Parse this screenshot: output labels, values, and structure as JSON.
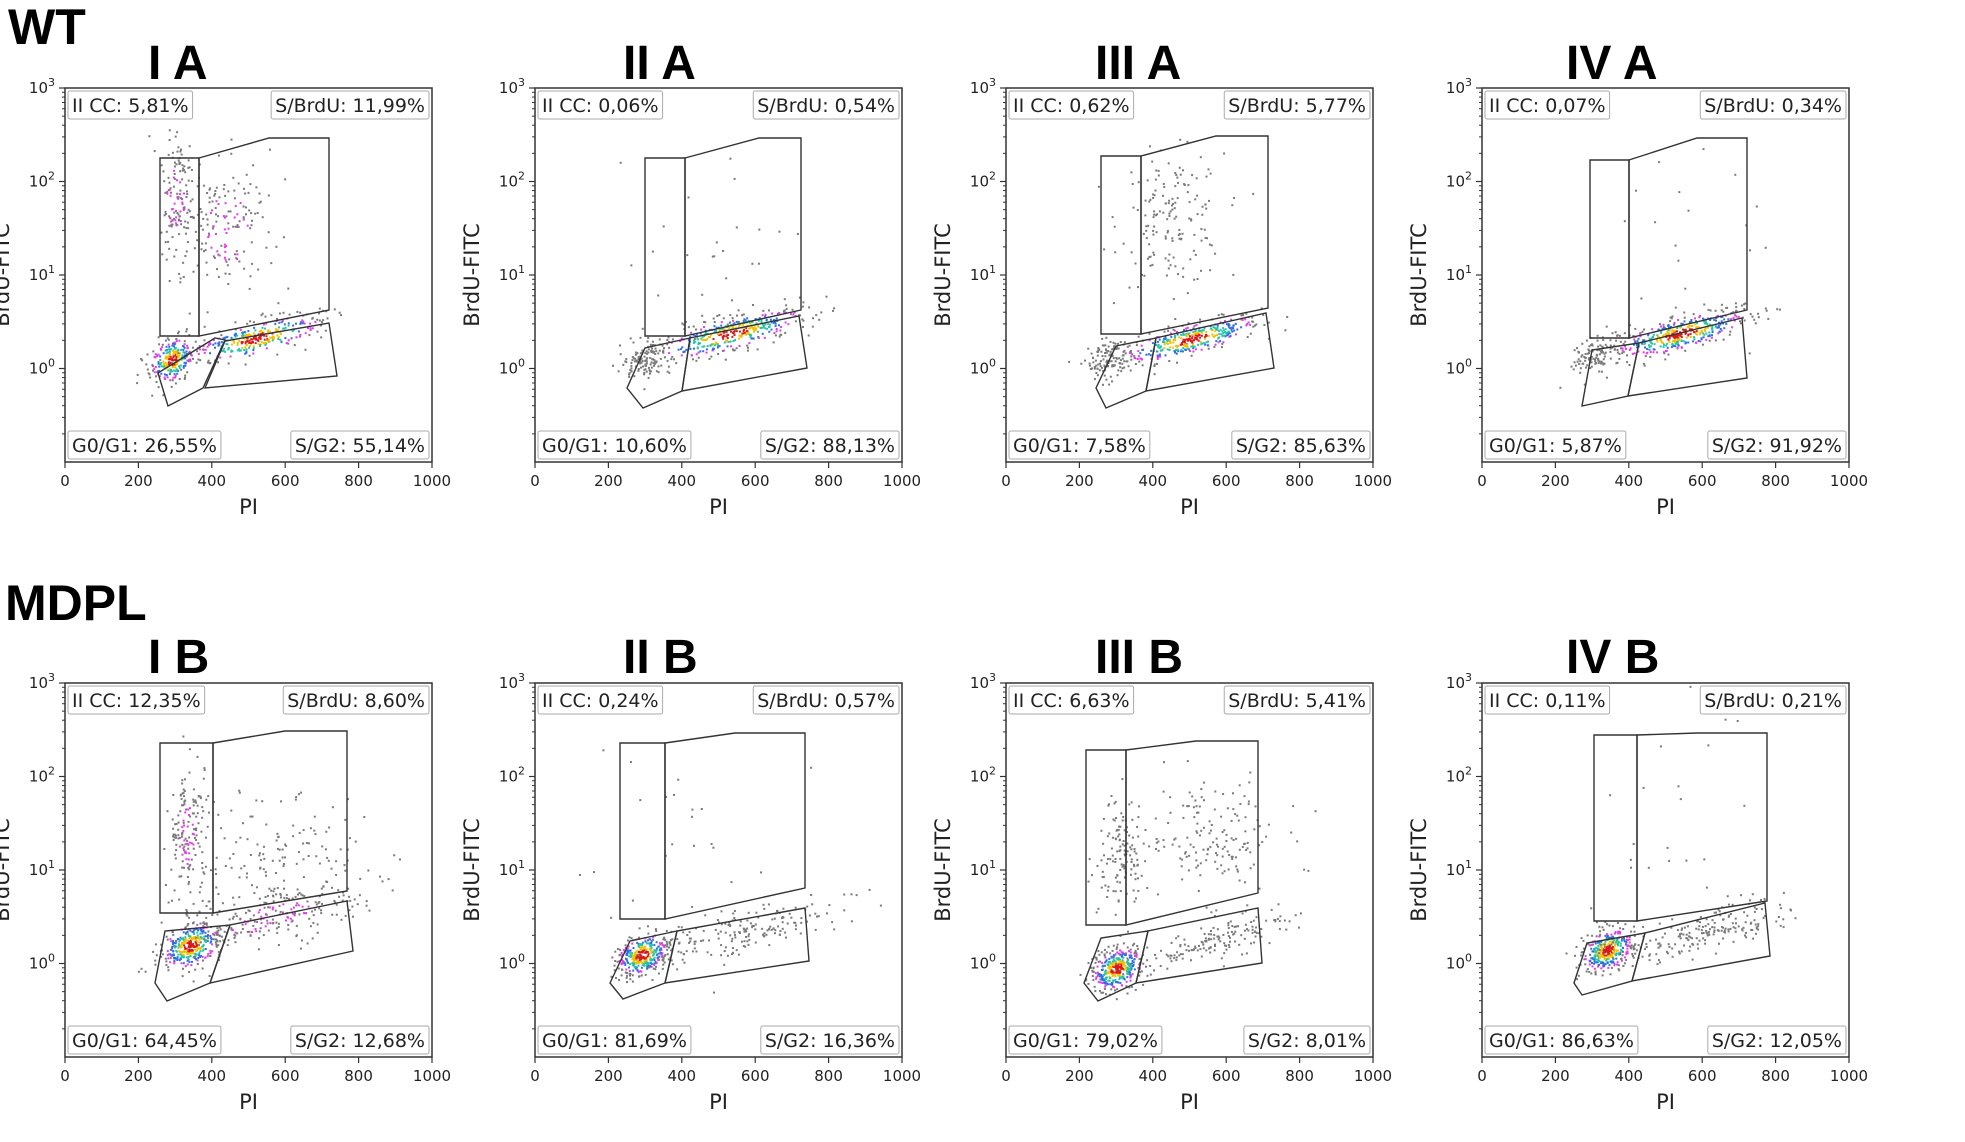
{
  "rows": [
    {
      "label": "WT"
    },
    {
      "label": "MDPL"
    }
  ],
  "chart_data": [
    {
      "type": "scatter",
      "title": "I A",
      "xlabel": "PI",
      "ylabel": "BrdU-FITC",
      "xlim": [
        0,
        1000
      ],
      "ylim": [
        0.1,
        1000
      ],
      "yscale": "log",
      "xticks": [
        "0",
        "200",
        "400",
        "600",
        "800",
        "1000"
      ],
      "gates": {
        "ii_cc": "II CC: 5,81%",
        "s_brdu": "S/BrdU: 11,99%",
        "g0_g1": "G0/G1: 26,55%",
        "s_g2": "S/G2: 55,14%"
      }
    },
    {
      "type": "scatter",
      "title": "II A",
      "xlabel": "PI",
      "ylabel": "BrdU-FITC",
      "xlim": [
        0,
        1000
      ],
      "ylim": [
        0.1,
        1000
      ],
      "yscale": "log",
      "xticks": [
        "0",
        "200",
        "400",
        "600",
        "800",
        "1000"
      ],
      "gates": {
        "ii_cc": "II CC: 0,06%",
        "s_brdu": "S/BrdU: 0,54%",
        "g0_g1": "G0/G1: 10,60%",
        "s_g2": "S/G2: 88,13%"
      }
    },
    {
      "type": "scatter",
      "title": "III A",
      "xlabel": "PI",
      "ylabel": "BrdU-FITC",
      "xlim": [
        0,
        1000
      ],
      "ylim": [
        0.1,
        1000
      ],
      "yscale": "log",
      "xticks": [
        "0",
        "200",
        "400",
        "600",
        "800",
        "1000"
      ],
      "gates": {
        "ii_cc": "II CC: 0,62%",
        "s_brdu": "S/BrdU: 5,77%",
        "g0_g1": "G0/G1: 7,58%",
        "s_g2": "S/G2: 85,63%"
      }
    },
    {
      "type": "scatter",
      "title": "IV A",
      "xlabel": "PI",
      "ylabel": "BrdU-FITC",
      "xlim": [
        0,
        1000
      ],
      "ylim": [
        0.1,
        1000
      ],
      "yscale": "log",
      "xticks": [
        "0",
        "200",
        "400",
        "600",
        "800",
        "1000"
      ],
      "gates": {
        "ii_cc": "II CC: 0,07%",
        "s_brdu": "S/BrdU: 0,34%",
        "g0_g1": "G0/G1: 5,87%",
        "s_g2": "S/G2: 91,92%"
      }
    },
    {
      "type": "scatter",
      "title": "I B",
      "xlabel": "PI",
      "ylabel": "BrdU-FITC",
      "xlim": [
        0,
        1000
      ],
      "ylim": [
        0.1,
        1000
      ],
      "yscale": "log",
      "xticks": [
        "0",
        "200",
        "400",
        "600",
        "800",
        "1000"
      ],
      "gates": {
        "ii_cc": "II CC: 12,35%",
        "s_brdu": "S/BrdU: 8,60%",
        "g0_g1": "G0/G1: 64,45%",
        "s_g2": "S/G2: 12,68%"
      }
    },
    {
      "type": "scatter",
      "title": "II B",
      "xlabel": "PI",
      "ylabel": "BrdU-FITC",
      "xlim": [
        0,
        1000
      ],
      "ylim": [
        0.1,
        1000
      ],
      "yscale": "log",
      "xticks": [
        "0",
        "200",
        "400",
        "600",
        "800",
        "1000"
      ],
      "gates": {
        "ii_cc": "II CC: 0,24%",
        "s_brdu": "S/BrdU: 0,57%",
        "g0_g1": "G0/G1: 81,69%",
        "s_g2": "S/G2: 16,36%"
      }
    },
    {
      "type": "scatter",
      "title": "III B",
      "xlabel": "PI",
      "ylabel": "BrdU-FITC",
      "xlim": [
        0,
        1000
      ],
      "ylim": [
        0.1,
        1000
      ],
      "yscale": "log",
      "xticks": [
        "0",
        "200",
        "400",
        "600",
        "800",
        "1000"
      ],
      "gates": {
        "ii_cc": "II CC: 6,63%",
        "s_brdu": "S/BrdU: 5,41%",
        "g0_g1": "G0/G1: 79,02%",
        "s_g2": "S/G2: 8,01%"
      }
    },
    {
      "type": "scatter",
      "title": "IV B",
      "xlabel": "PI",
      "ylabel": "BrdU-FITC",
      "xlim": [
        0,
        1000
      ],
      "ylim": [
        0.1,
        1000
      ],
      "yscale": "log",
      "xticks": [
        "0",
        "200",
        "400",
        "600",
        "800",
        "1000"
      ],
      "gates": {
        "ii_cc": "II CC: 0,11%",
        "s_brdu": "S/BrdU: 0,21%",
        "g0_g1": "G0/G1: 86,63%",
        "s_g2": "S/G2: 12,05%"
      }
    }
  ]
}
